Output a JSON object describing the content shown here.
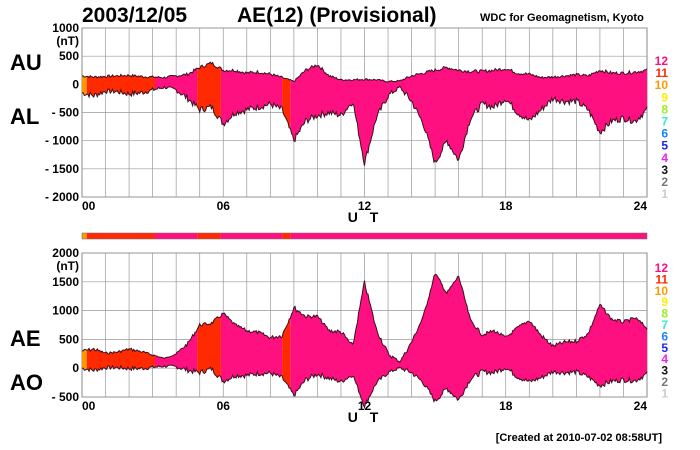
{
  "header": {
    "date": "2003/12/05",
    "title": "AE(12) (Provisional)",
    "source": "WDC for Geomagnetism, Kyoto"
  },
  "footer": {
    "created": "[Created at 2010-07-02 08:58UT]"
  },
  "chart_data": [
    {
      "type": "area",
      "title": "AU / AL",
      "ylabel": "(nT)",
      "xlabel": "U T",
      "ylim": [
        -2000,
        1000
      ],
      "yticks": [
        "1000",
        "500",
        "0",
        "- 500",
        "- 1000",
        "- 1500",
        "- 2000"
      ],
      "ytick_values": [
        1000,
        500,
        0,
        -500,
        -1000,
        -1500,
        -2000
      ],
      "xticks": [
        "00",
        "06",
        "12",
        "18",
        "24"
      ],
      "xlim": [
        0,
        24
      ],
      "series_labels": [
        "AU",
        "AL"
      ],
      "grid": true
    },
    {
      "type": "area",
      "title": "AE / AO",
      "ylabel": "(nT)",
      "xlabel": "U T",
      "ylim": [
        -500,
        2000
      ],
      "yticks": [
        "2000",
        "1500",
        "1000",
        "500",
        "0",
        "- 500"
      ],
      "ytick_values": [
        2000,
        1500,
        1000,
        500,
        0,
        -500
      ],
      "xticks": [
        "00",
        "06",
        "12",
        "18",
        "24"
      ],
      "xlim": [
        0,
        24
      ],
      "series_labels": [
        "AE",
        "AO"
      ],
      "grid": true
    }
  ],
  "series": {
    "hours": [
      0,
      0.5,
      1,
      1.5,
      2,
      2.5,
      3,
      3.5,
      4,
      4.5,
      5,
      5.5,
      6,
      6.5,
      7,
      7.5,
      8,
      8.5,
      9,
      9.5,
      10,
      10.5,
      11,
      11.5,
      12,
      12.5,
      13,
      13.5,
      14,
      14.5,
      15,
      15.5,
      16,
      16.5,
      17,
      17.5,
      18,
      18.5,
      19,
      19.5,
      20,
      20.5,
      21,
      21.5,
      22,
      22.5,
      23,
      23.5,
      24
    ],
    "AU": [
      150,
      130,
      140,
      150,
      160,
      140,
      130,
      120,
      150,
      180,
      300,
      380,
      250,
      250,
      200,
      220,
      180,
      120,
      50,
      250,
      350,
      150,
      80,
      80,
      90,
      80,
      50,
      60,
      150,
      200,
      250,
      300,
      250,
      230,
      230,
      250,
      280,
      200,
      180,
      120,
      130,
      150,
      170,
      150,
      250,
      200,
      200,
      220,
      250
    ],
    "AL": [
      -150,
      -200,
      -120,
      -130,
      -170,
      -150,
      -100,
      -50,
      -100,
      -250,
      -450,
      -400,
      -700,
      -500,
      -450,
      -400,
      -350,
      -450,
      -1000,
      -650,
      -550,
      -500,
      -550,
      -300,
      -1400,
      -600,
      -200,
      -50,
      -300,
      -700,
      -1400,
      -1000,
      -1350,
      -600,
      -350,
      -400,
      -250,
      -500,
      -650,
      -450,
      -250,
      -300,
      -300,
      -450,
      -850,
      -650,
      -600,
      -650,
      -450
    ]
  },
  "station_segments": [
    {
      "start": 0,
      "end": 0.2,
      "stations": 10
    },
    {
      "start": 0.2,
      "end": 3.1,
      "stations": 11
    },
    {
      "start": 3.1,
      "end": 4.9,
      "stations": 12
    },
    {
      "start": 4.9,
      "end": 5.9,
      "stations": 11
    },
    {
      "start": 5.9,
      "end": 8.5,
      "stations": 12
    },
    {
      "start": 8.5,
      "end": 8.85,
      "stations": 11
    },
    {
      "start": 8.85,
      "end": 24,
      "stations": 12
    }
  ],
  "station_legend": [
    {
      "label": "12",
      "color": "#ff1080"
    },
    {
      "label": "11",
      "color": "#ff2a00"
    },
    {
      "label": "10",
      "color": "#ff9900"
    },
    {
      "label": "9",
      "color": "#ffee00"
    },
    {
      "label": "8",
      "color": "#99ee22"
    },
    {
      "label": "7",
      "color": "#33eecc"
    },
    {
      "label": "6",
      "color": "#1a80ff"
    },
    {
      "label": "5",
      "color": "#2222ee"
    },
    {
      "label": "4",
      "color": "#ee22ee"
    },
    {
      "label": "3",
      "color": "#111111"
    },
    {
      "label": "2",
      "color": "#777777"
    },
    {
      "label": "1",
      "color": "#cccccc"
    }
  ]
}
